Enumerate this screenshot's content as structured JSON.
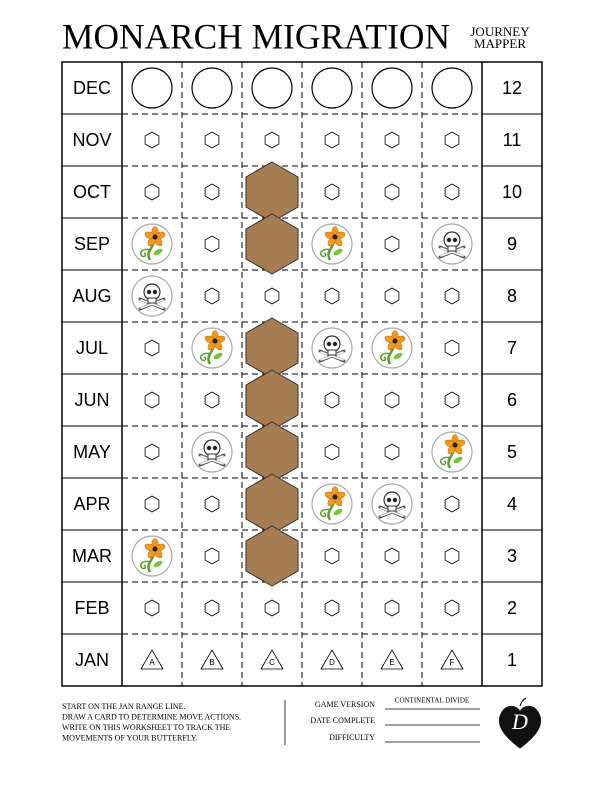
{
  "header": {
    "title": "MONARCH MIGRATION",
    "subtitle": [
      "JOURNEY",
      "MAPPER"
    ]
  },
  "grid": {
    "rows": [
      {
        "month": "DEC",
        "number": 12
      },
      {
        "month": "NOV",
        "number": 11
      },
      {
        "month": "OCT",
        "number": 10
      },
      {
        "month": "SEP",
        "number": 9
      },
      {
        "month": "AUG",
        "number": 8
      },
      {
        "month": "JUL",
        "number": 7
      },
      {
        "month": "JUN",
        "number": 6
      },
      {
        "month": "MAY",
        "number": 5
      },
      {
        "month": "APR",
        "number": 4
      },
      {
        "month": "MAR",
        "number": 3
      },
      {
        "month": "FEB",
        "number": 2
      },
      {
        "month": "JAN",
        "number": 1
      }
    ],
    "columns": [
      "A",
      "B",
      "C",
      "D",
      "E",
      "F"
    ]
  },
  "footer": {
    "instructions": [
      "START ON THE JAN RANGE LINE.",
      "DRAW A CARD TO DETERMINE MOVE ACTIONS.",
      "WRITE ON THIS WORKSHEET TO TRACK THE",
      "MOVEMENTS OF YOUR BUTTERFLY."
    ],
    "fields": [
      {
        "label": "GAME VERSION",
        "value": "CONTINENTAL DIVIDE"
      },
      {
        "label": "DATE COMPLETE"
      },
      {
        "label": "DIFFICULTY"
      }
    ],
    "logo": "D"
  }
}
